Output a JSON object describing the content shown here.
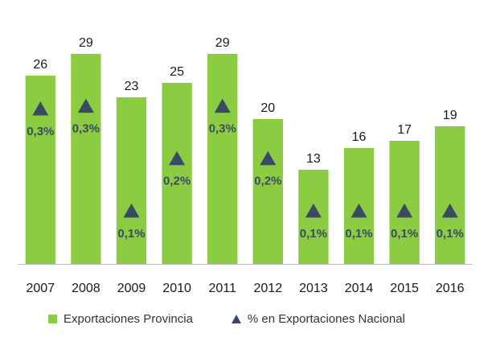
{
  "colors": {
    "bar": "#8ccc42",
    "marker": "#3a4a63",
    "marker_label": "#3a4a63",
    "axis": "#bfbfbf",
    "text": "#1a1a1a"
  },
  "chart_data": {
    "type": "bar",
    "categories": [
      "2007",
      "2008",
      "2009",
      "2010",
      "2011",
      "2012",
      "2013",
      "2014",
      "2015",
      "2016"
    ],
    "ylim": [
      0,
      30
    ],
    "marker_ylim": [
      0,
      0.35
    ],
    "series": [
      {
        "name": "Exportaciones Provincia",
        "type": "bar",
        "values": [
          26,
          29,
          23,
          25,
          29,
          20,
          13,
          16,
          17,
          19
        ],
        "labels": [
          "26",
          "29",
          "23",
          "25",
          "29",
          "20",
          "13",
          "16",
          "17",
          "19"
        ]
      },
      {
        "name": "% en Exportaciones Nacional",
        "type": "marker",
        "values": [
          0.3,
          0.3,
          0.1,
          0.2,
          0.3,
          0.2,
          0.1,
          0.1,
          0.1,
          0.1
        ],
        "labels": [
          "0,3%",
          "0,3%",
          "0,1%",
          "0,2%",
          "0,3%",
          "0,2%",
          "0,1%",
          "0,1%",
          "0,1%",
          "0,1%"
        ]
      }
    ]
  },
  "legend": {
    "bar_label": "Exportaciones Provincia",
    "marker_label": "% en Exportaciones Nacional"
  }
}
